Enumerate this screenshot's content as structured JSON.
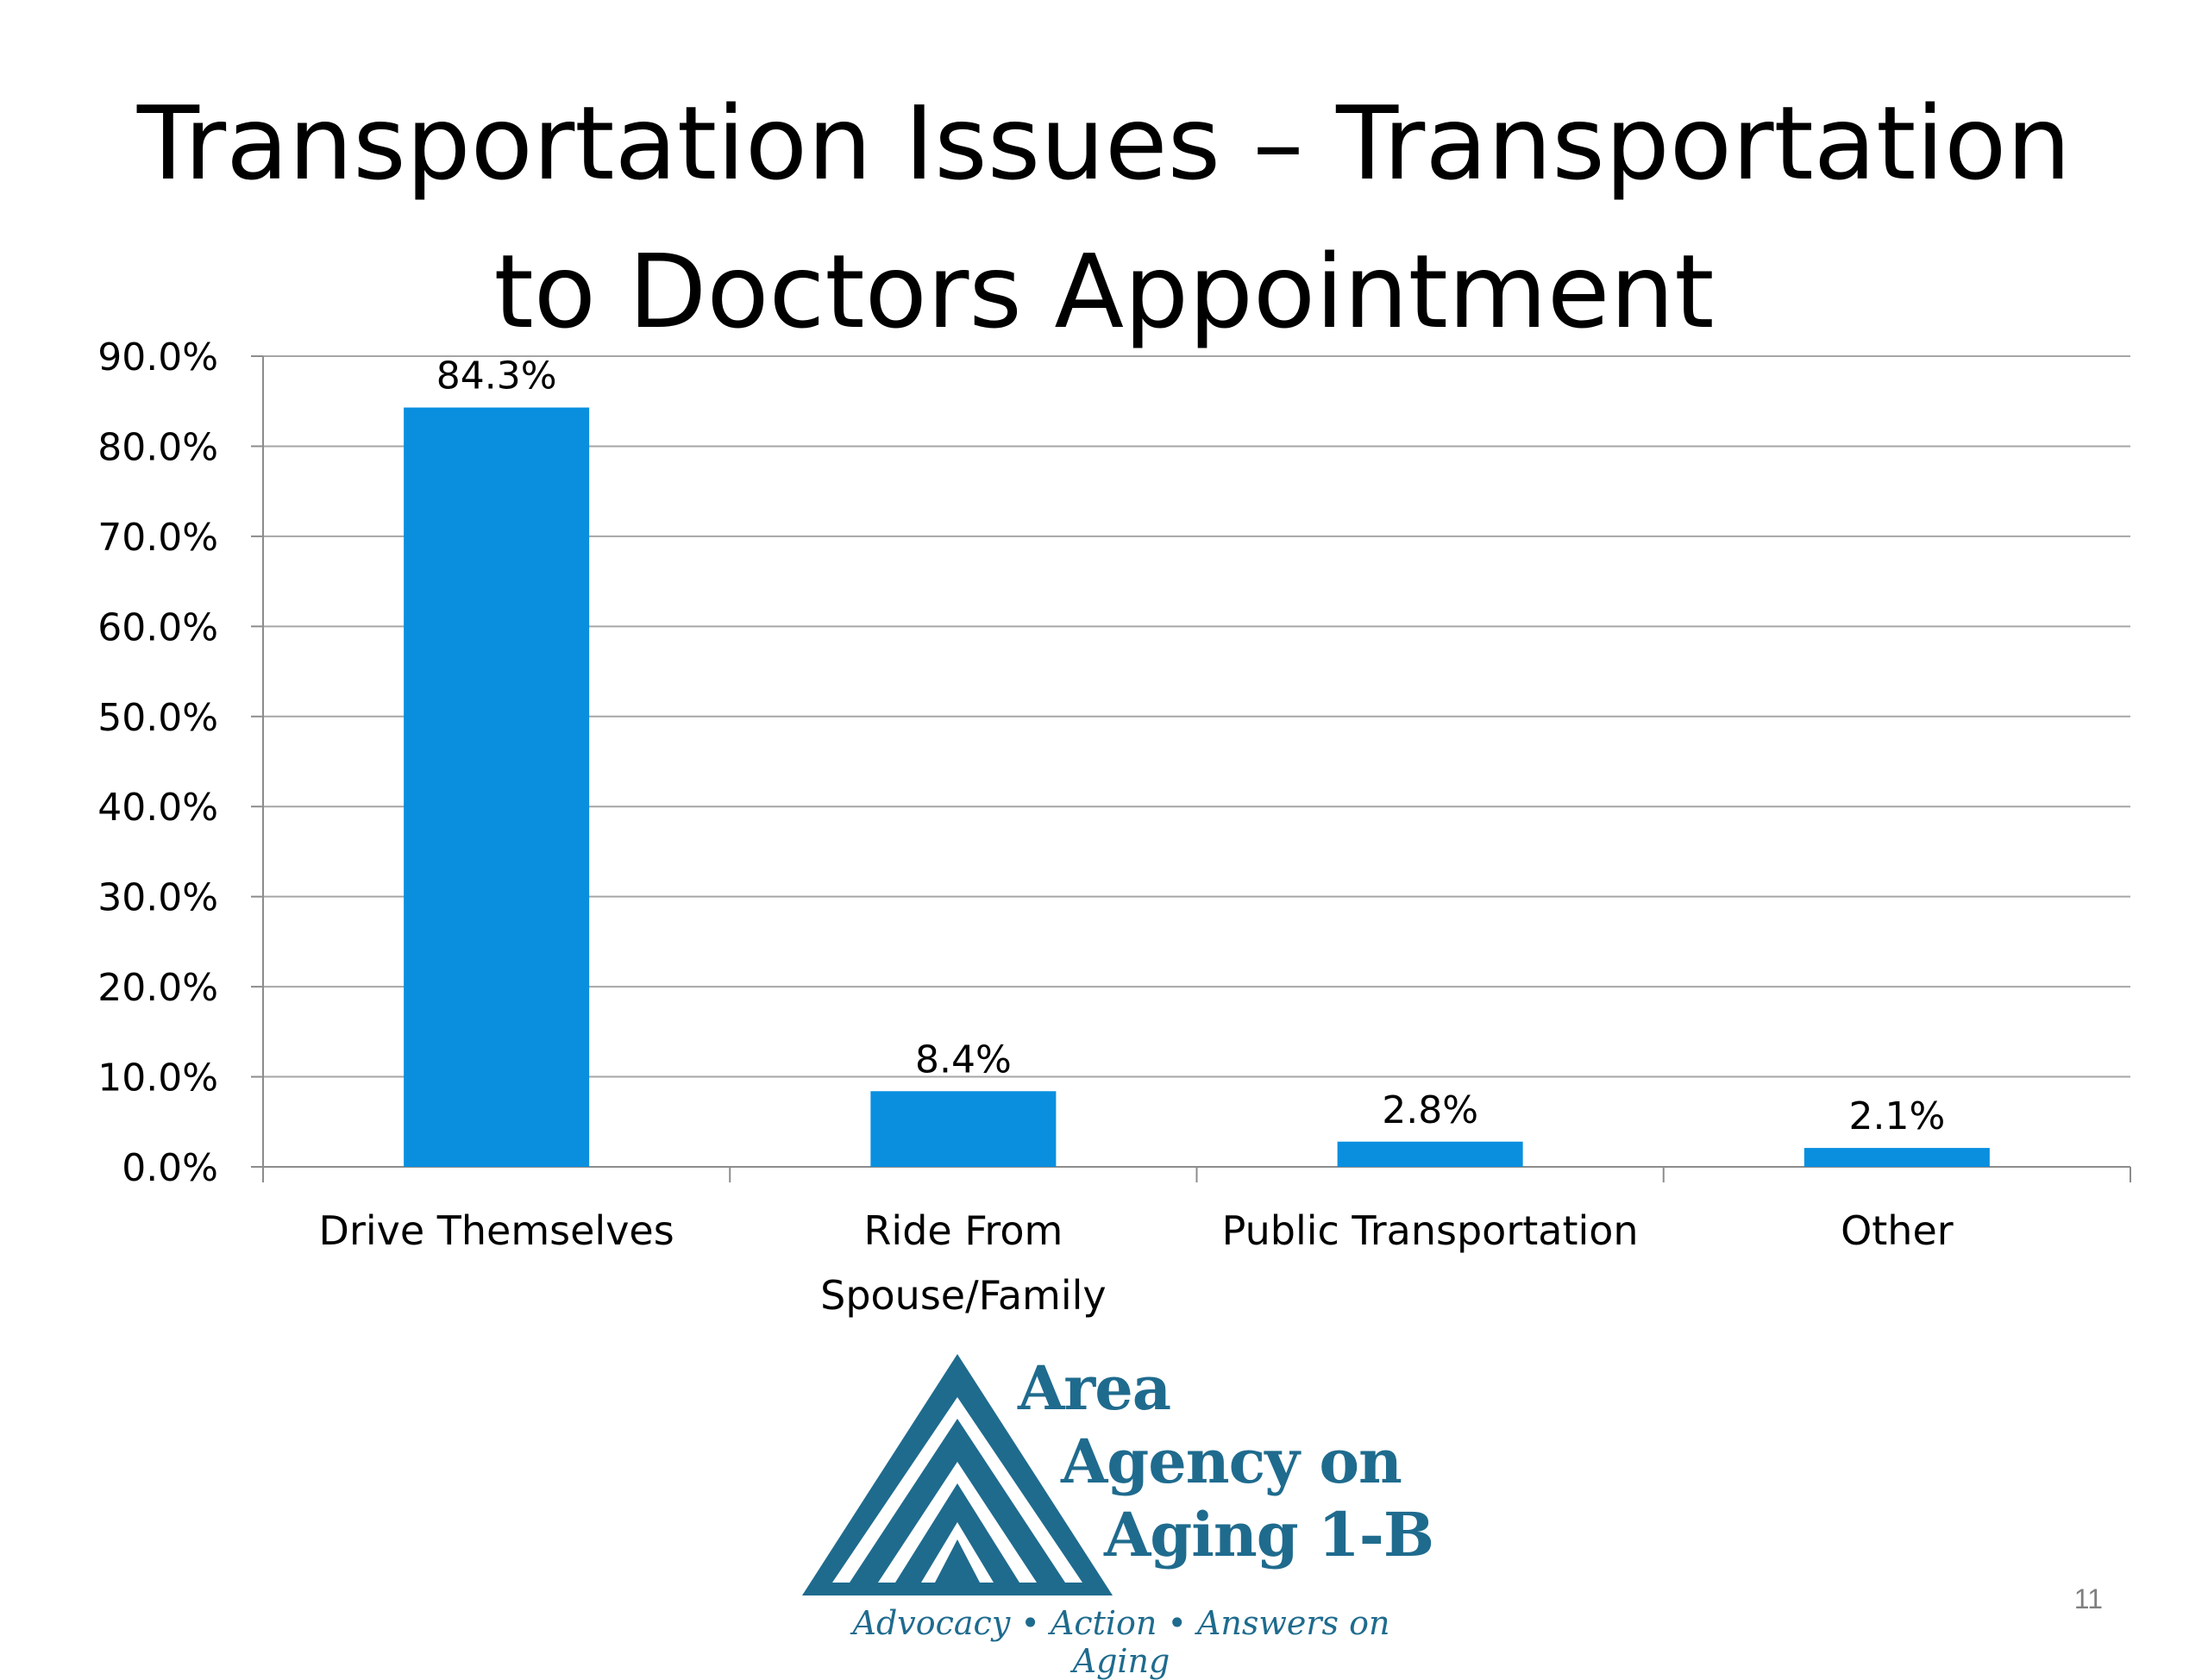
{
  "slide": {
    "title_line1": "Transportation Issues – Transportation",
    "title_line2": "to Doctors Appointment",
    "page_number": "11"
  },
  "logo": {
    "line1": "Area",
    "line2": "Agency on",
    "line3": "Aging 1-B",
    "tagline": "Advocacy • Action • Answers on Aging",
    "color": "#1f6b8e"
  },
  "chart_data": {
    "type": "bar",
    "title": "Transportation Issues – Transportation to Doctors Appointment",
    "categories": [
      [
        "Drive Themselves"
      ],
      [
        "Ride From",
        "Spouse/Family"
      ],
      [
        "Public Transportation"
      ],
      [
        "Other"
      ]
    ],
    "values": [
      84.3,
      8.4,
      2.8,
      2.1
    ],
    "data_labels": [
      "84.3%",
      "8.4%",
      "2.8%",
      "2.1%"
    ],
    "ylim": [
      0,
      90
    ],
    "yticks": [
      0,
      10,
      20,
      30,
      40,
      50,
      60,
      70,
      80,
      90
    ],
    "ytick_labels": [
      "0.0%",
      "10.0%",
      "20.0%",
      "30.0%",
      "40.0%",
      "50.0%",
      "60.0%",
      "70.0%",
      "80.0%",
      "90.0%"
    ],
    "xlabel": "",
    "ylabel": "",
    "grid": true,
    "legend": false,
    "bar_color": "#0a8fdf",
    "grid_color": "#a6a6a6"
  }
}
